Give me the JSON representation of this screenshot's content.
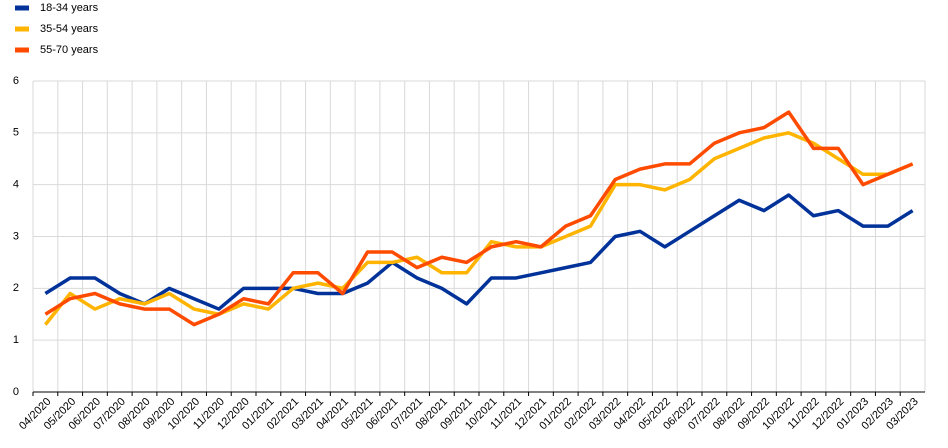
{
  "chart_data": {
    "type": "line",
    "categories": [
      "04/2020",
      "05/2020",
      "06/2020",
      "07/2020",
      "08/2020",
      "09/2020",
      "10/2020",
      "11/2020",
      "12/2020",
      "01/2021",
      "02/2021",
      "03/2021",
      "04/2021",
      "05/2021",
      "06/2021",
      "07/2021",
      "08/2021",
      "09/2021",
      "10/2021",
      "11/2021",
      "12/2021",
      "01/2022",
      "02/2022",
      "03/2022",
      "04/2022",
      "05/2022",
      "06/2022",
      "07/2022",
      "08/2022",
      "09/2022",
      "10/2022",
      "11/2022",
      "12/2022",
      "01/2023",
      "02/2023",
      "03/2023"
    ],
    "series": [
      {
        "name": "18-34 years",
        "color": "#003299",
        "values": [
          1.9,
          2.2,
          2.2,
          1.9,
          1.7,
          2.0,
          1.8,
          1.6,
          2.0,
          2.0,
          2.0,
          1.9,
          1.9,
          2.1,
          2.5,
          2.2,
          2.0,
          1.7,
          2.2,
          2.2,
          2.3,
          2.4,
          2.5,
          3.0,
          3.1,
          2.8,
          3.1,
          3.4,
          3.7,
          3.5,
          3.8,
          3.4,
          3.5,
          3.2,
          3.2,
          3.5
        ]
      },
      {
        "name": "35-54 years",
        "color": "#FFB400",
        "values": [
          1.3,
          1.9,
          1.6,
          1.8,
          1.7,
          1.9,
          1.6,
          1.5,
          1.7,
          1.6,
          2.0,
          2.1,
          2.0,
          2.5,
          2.5,
          2.6,
          2.3,
          2.3,
          2.9,
          2.8,
          2.8,
          3.0,
          3.2,
          4.0,
          4.0,
          3.9,
          4.1,
          4.5,
          4.7,
          4.9,
          5.0,
          4.8,
          4.5,
          4.2,
          4.2,
          4.4
        ]
      },
      {
        "name": "55-70 years",
        "color": "#FF4B00",
        "values": [
          1.5,
          1.8,
          1.9,
          1.7,
          1.6,
          1.6,
          1.3,
          1.5,
          1.8,
          1.7,
          2.3,
          2.3,
          1.9,
          2.7,
          2.7,
          2.4,
          2.6,
          2.5,
          2.8,
          2.9,
          2.8,
          3.2,
          3.4,
          4.1,
          4.3,
          4.4,
          4.4,
          4.8,
          5.0,
          5.1,
          5.4,
          4.7,
          4.7,
          4.0,
          4.2,
          4.4
        ]
      }
    ],
    "ylim": [
      0,
      6
    ],
    "yticks": [
      0,
      1,
      2,
      3,
      4,
      5,
      6
    ],
    "grid": true
  }
}
